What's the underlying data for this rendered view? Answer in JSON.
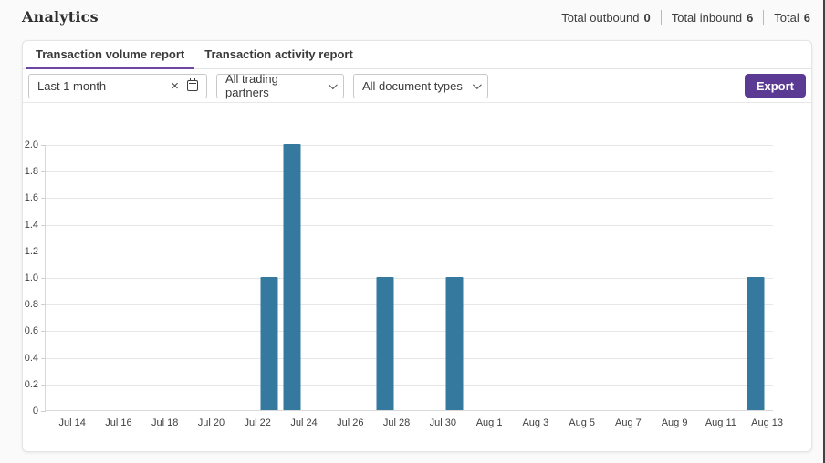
{
  "page": {
    "title": "Analytics",
    "totals": [
      {
        "label": "Total outbound",
        "value": "0"
      },
      {
        "label": "Total inbound",
        "value": "6"
      },
      {
        "label": "Total",
        "value": "6"
      }
    ]
  },
  "tabs": [
    {
      "label": "Transaction volume report",
      "active": true
    },
    {
      "label": "Transaction activity report",
      "active": false
    }
  ],
  "filters": {
    "date_range_value": "Last 1 month",
    "clear_glyph": "×",
    "trading_partners_value": "All trading partners",
    "document_types_value": "All document types",
    "export_label": "Export"
  },
  "colors": {
    "accent_purple": "#5b3a94",
    "tab_underline": "#6b46a5",
    "bar": "#36799f",
    "gridline": "#e7e7e7"
  },
  "chart_data": {
    "type": "bar",
    "title": "Transaction volume report",
    "xlabel": "",
    "ylabel": "",
    "ylim": [
      0,
      2
    ],
    "grid": true,
    "legend": "none",
    "bar_color": "#36799f",
    "y_ticks": [
      {
        "label": "2.0",
        "value": 2.0
      },
      {
        "label": "1.8",
        "value": 1.8
      },
      {
        "label": "1.6",
        "value": 1.6
      },
      {
        "label": "1.4",
        "value": 1.4
      },
      {
        "label": "1.2",
        "value": 1.2
      },
      {
        "label": "1.0",
        "value": 1.0
      },
      {
        "label": "0.8",
        "value": 0.8
      },
      {
        "label": "0.6",
        "value": 0.6
      },
      {
        "label": "0.4",
        "value": 0.4
      },
      {
        "label": "0.2",
        "value": 0.2
      },
      {
        "label": "0",
        "value": 0.0
      }
    ],
    "x_ticks": [
      {
        "label": "Jul 14",
        "day": 0
      },
      {
        "label": "Jul 16",
        "day": 2
      },
      {
        "label": "Jul 18",
        "day": 4
      },
      {
        "label": "Jul 20",
        "day": 6
      },
      {
        "label": "Jul 22",
        "day": 8
      },
      {
        "label": "Jul 24",
        "day": 10
      },
      {
        "label": "Jul 26",
        "day": 12
      },
      {
        "label": "Jul 28",
        "day": 14
      },
      {
        "label": "Jul 30",
        "day": 16
      },
      {
        "label": "Aug 1",
        "day": 18
      },
      {
        "label": "Aug 3",
        "day": 20
      },
      {
        "label": "Aug 5",
        "day": 22
      },
      {
        "label": "Aug 7",
        "day": 24
      },
      {
        "label": "Aug 9",
        "day": 26
      },
      {
        "label": "Aug 11",
        "day": 28
      },
      {
        "label": "Aug 13",
        "day": 30
      }
    ],
    "axis_layout": {
      "start_day": -1.15,
      "span_days": 31.4,
      "bar_slot_offset": 0.5
    },
    "series": [
      {
        "name": "Transaction volume",
        "points": [
          {
            "date": "Jul 22",
            "day": 8,
            "value": 1
          },
          {
            "date": "Jul 23",
            "day": 9,
            "value": 2
          },
          {
            "date": "Jul 27",
            "day": 13,
            "value": 1
          },
          {
            "date": "Jul 30",
            "day": 16,
            "value": 1
          },
          {
            "date": "Aug 12",
            "day": 29,
            "value": 1
          }
        ]
      }
    ]
  }
}
